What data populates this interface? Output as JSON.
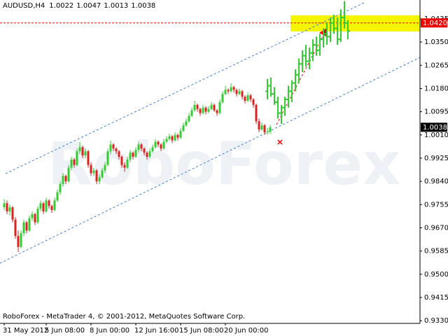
{
  "chart_data": {
    "type": "candlestick",
    "title": "AUDUSD,H4",
    "watermark": "RoboForex",
    "footer": "RoboForex - MetaTrader 4, © 2001-2012, MetaQuotes Software Corp.",
    "x_labels": [
      "31 May 2012",
      "5 Jun 08:00",
      "8 Jun 00:00",
      "12 Jun 16:00",
      "15 Jun 08:00",
      "20 Jun 00:00"
    ],
    "ylim": [
      0.932,
      1.0504
    ],
    "yticks": [
      1.0435,
      {
        "value": 1.035,
        "label": "1.0350"
      },
      1.0265,
      {
        "value": 1.018,
        "label": "1.0180"
      },
      1.0095,
      {
        "value": 1.001,
        "label": "1.0010"
      },
      0.9925,
      {
        "value": 0.984,
        "label": "0.9840"
      },
      0.9755,
      {
        "value": 0.967,
        "label": "0.9670"
      },
      0.9585,
      {
        "value": 0.95,
        "label": "0.9500"
      },
      0.9415,
      {
        "value": 0.933,
        "label": "0.9330"
      }
    ],
    "level": {
      "value": 1.042,
      "label": "1.0420"
    },
    "last_price": 1.0038,
    "target_zone": [
      1.0389,
      1.0448
    ],
    "up_color": "#33cc33",
    "down_color": "#dd2222",
    "forecast_color": "#33cc33",
    "ohlc": [
      [
        0.9745,
        0.9775,
        0.9735,
        0.976
      ],
      [
        0.976,
        0.977,
        0.972,
        0.973
      ],
      [
        0.973,
        0.9755,
        0.9715,
        0.9745
      ],
      [
        0.9745,
        0.975,
        0.969,
        0.97
      ],
      [
        0.97,
        0.971,
        0.963,
        0.964
      ],
      [
        0.964,
        0.966,
        0.9581,
        0.96
      ],
      [
        0.96,
        0.966,
        0.9595,
        0.965
      ],
      [
        0.965,
        0.97,
        0.964,
        0.969
      ],
      [
        0.969,
        0.9695,
        0.965,
        0.966
      ],
      [
        0.966,
        0.9715,
        0.9655,
        0.9705
      ],
      [
        0.9705,
        0.973,
        0.9695,
        0.972
      ],
      [
        0.972,
        0.9725,
        0.968,
        0.969
      ],
      [
        0.969,
        0.975,
        0.9685,
        0.974
      ],
      [
        0.974,
        0.977,
        0.973,
        0.976
      ],
      [
        0.976,
        0.9765,
        0.972,
        0.973
      ],
      [
        0.973,
        0.978,
        0.9725,
        0.977
      ],
      [
        0.977,
        0.9775,
        0.974,
        0.975
      ],
      [
        0.975,
        0.9755,
        0.9725,
        0.9735
      ],
      [
        0.9735,
        0.978,
        0.973,
        0.977
      ],
      [
        0.977,
        0.981,
        0.9765,
        0.98
      ],
      [
        0.98,
        0.984,
        0.979,
        0.983
      ],
      [
        0.983,
        0.987,
        0.982,
        0.986
      ],
      [
        0.986,
        0.9865,
        0.983,
        0.984
      ],
      [
        0.984,
        0.99,
        0.9835,
        0.989
      ],
      [
        0.989,
        0.993,
        0.988,
        0.992
      ],
      [
        0.992,
        0.9925,
        0.989,
        0.99
      ],
      [
        0.99,
        0.996,
        0.9895,
        0.995
      ],
      [
        0.995,
        0.9985,
        0.994,
        0.9965
      ],
      [
        0.9965,
        0.997,
        0.9925,
        0.9935
      ],
      [
        0.9935,
        0.996,
        0.9925,
        0.995
      ],
      [
        0.995,
        0.9955,
        0.989,
        0.99
      ],
      [
        0.99,
        0.991,
        0.986,
        0.987
      ],
      [
        0.987,
        0.989,
        0.986,
        0.988
      ],
      [
        0.988,
        0.9885,
        0.983,
        0.984
      ],
      [
        0.984,
        0.9865,
        0.983,
        0.9855
      ],
      [
        0.9855,
        0.989,
        0.985,
        0.988
      ],
      [
        0.988,
        0.991,
        0.987,
        0.99
      ],
      [
        0.99,
        0.996,
        0.9895,
        0.995
      ],
      [
        0.995,
        0.999,
        0.994,
        0.9975
      ],
      [
        0.9975,
        0.998,
        0.995,
        0.996
      ],
      [
        0.996,
        0.9965,
        0.994,
        0.995
      ],
      [
        0.995,
        0.9955,
        0.992,
        0.993
      ],
      [
        0.993,
        0.9935,
        0.989,
        0.99
      ],
      [
        0.99,
        0.991,
        0.9875,
        0.989
      ],
      [
        0.989,
        0.993,
        0.9885,
        0.992
      ],
      [
        0.992,
        0.9955,
        0.991,
        0.9945
      ],
      [
        0.9945,
        0.995,
        0.992,
        0.993
      ],
      [
        0.993,
        0.9965,
        0.9925,
        0.9955
      ],
      [
        0.9955,
        0.9985,
        0.9945,
        0.9975
      ],
      [
        0.9975,
        0.998,
        0.995,
        0.996
      ],
      [
        0.996,
        0.9965,
        0.9935,
        0.9945
      ],
      [
        0.9945,
        0.995,
        0.992,
        0.993
      ],
      [
        0.993,
        0.996,
        0.9925,
        0.995
      ],
      [
        0.995,
        0.9975,
        0.9945,
        0.9965
      ],
      [
        0.9965,
        0.9995,
        0.996,
        0.9985
      ],
      [
        0.9985,
        0.999,
        0.9965,
        0.9975
      ],
      [
        0.9975,
        0.998,
        0.995,
        0.996
      ],
      [
        0.996,
        0.9995,
        0.9955,
        0.9985
      ],
      [
        0.9985,
        1.0005,
        0.998,
        0.9995
      ],
      [
        0.9995,
        1.0015,
        0.999,
        1.0005
      ],
      [
        1.0005,
        1.001,
        0.998,
        0.999
      ],
      [
        0.999,
        1.002,
        0.9985,
        1.001
      ],
      [
        1.001,
        1.0015,
        0.999,
        1.0
      ],
      [
        1.0,
        1.0035,
        0.9995,
        1.0025
      ],
      [
        1.0025,
        1.0055,
        1.002,
        1.0045
      ],
      [
        1.0045,
        1.007,
        1.004,
        1.006
      ],
      [
        1.006,
        1.009,
        1.0055,
        1.008
      ],
      [
        1.008,
        1.011,
        1.0075,
        1.01
      ],
      [
        1.01,
        1.0135,
        1.0095,
        1.012
      ],
      [
        1.012,
        1.0125,
        1.0095,
        1.0105
      ],
      [
        1.0105,
        1.011,
        1.008,
        1.009
      ],
      [
        1.009,
        1.012,
        1.0085,
        1.011
      ],
      [
        1.011,
        1.0115,
        1.0085,
        1.0095
      ],
      [
        1.0095,
        1.0115,
        1.009,
        1.0105
      ],
      [
        1.0105,
        1.013,
        1.01,
        1.012
      ],
      [
        1.012,
        1.0125,
        1.0095,
        1.01
      ],
      [
        1.01,
        1.0105,
        1.008,
        1.009
      ],
      [
        1.009,
        1.014,
        1.0085,
        1.013
      ],
      [
        1.013,
        1.017,
        1.0125,
        1.016
      ],
      [
        1.016,
        1.019,
        1.0155,
        1.0175
      ],
      [
        1.0175,
        1.018,
        1.016,
        1.017
      ],
      [
        1.017,
        1.02,
        1.0165,
        1.0185
      ],
      [
        1.0185,
        1.019,
        1.0165,
        1.0175
      ],
      [
        1.0175,
        1.018,
        1.015,
        1.016
      ],
      [
        1.016,
        1.018,
        1.0155,
        1.017
      ],
      [
        1.017,
        1.0175,
        1.014,
        1.015
      ],
      [
        1.015,
        1.0155,
        1.0125,
        1.0135
      ],
      [
        1.0135,
        1.0165,
        1.013,
        1.0155
      ],
      [
        1.0155,
        1.016,
        1.013,
        1.014
      ],
      [
        1.014,
        1.0145,
        1.011,
        1.012
      ],
      [
        1.012,
        1.0125,
        1.005,
        1.006
      ],
      [
        1.006,
        1.007,
        1.002,
        1.003
      ],
      [
        1.003,
        1.0055,
        1.0025,
        1.0045
      ],
      [
        1.0045,
        1.005,
        1.001,
        1.002
      ],
      [
        1.002,
        1.0035,
        1.001,
        1.0022
      ],
      [
        1.0022,
        1.0047,
        1.0013,
        1.0038
      ]
    ],
    "forecast": [
      [
        1.017,
        1.0215,
        1.014,
        1.019
      ],
      [
        1.019,
        1.022,
        1.015,
        1.016
      ],
      [
        1.016,
        1.0185,
        1.012,
        1.013
      ],
      [
        1.013,
        1.015,
        1.007,
        1.009
      ],
      [
        1.009,
        1.012,
        1.005,
        1.011
      ],
      [
        1.011,
        1.015,
        1.008,
        1.014
      ],
      [
        1.014,
        1.019,
        1.011,
        1.017
      ],
      [
        1.017,
        1.021,
        1.013,
        1.02
      ],
      [
        1.02,
        1.025,
        1.017,
        1.023
      ],
      [
        1.023,
        1.029,
        1.02,
        1.027
      ],
      [
        1.027,
        1.032,
        1.024,
        1.03
      ],
      [
        1.03,
        1.034,
        1.026,
        1.028
      ],
      [
        1.028,
        1.033,
        1.025,
        1.031
      ],
      [
        1.031,
        1.036,
        1.028,
        1.034
      ],
      [
        1.034,
        1.037,
        1.03,
        1.032
      ],
      [
        1.032,
        1.038,
        1.03,
        1.036
      ],
      [
        1.036,
        1.04,
        1.033,
        1.038
      ],
      [
        1.038,
        1.042,
        1.034,
        1.037
      ],
      [
        1.037,
        1.044,
        1.035,
        1.042
      ],
      [
        1.042,
        1.045,
        1.038,
        1.04
      ],
      [
        1.04,
        1.044,
        1.034,
        1.036
      ],
      [
        1.036,
        1.047,
        1.035,
        1.044
      ],
      [
        1.044,
        1.05,
        1.04,
        1.042
      ],
      [
        1.042,
        1.043,
        1.036,
        1.039
      ]
    ]
  }
}
